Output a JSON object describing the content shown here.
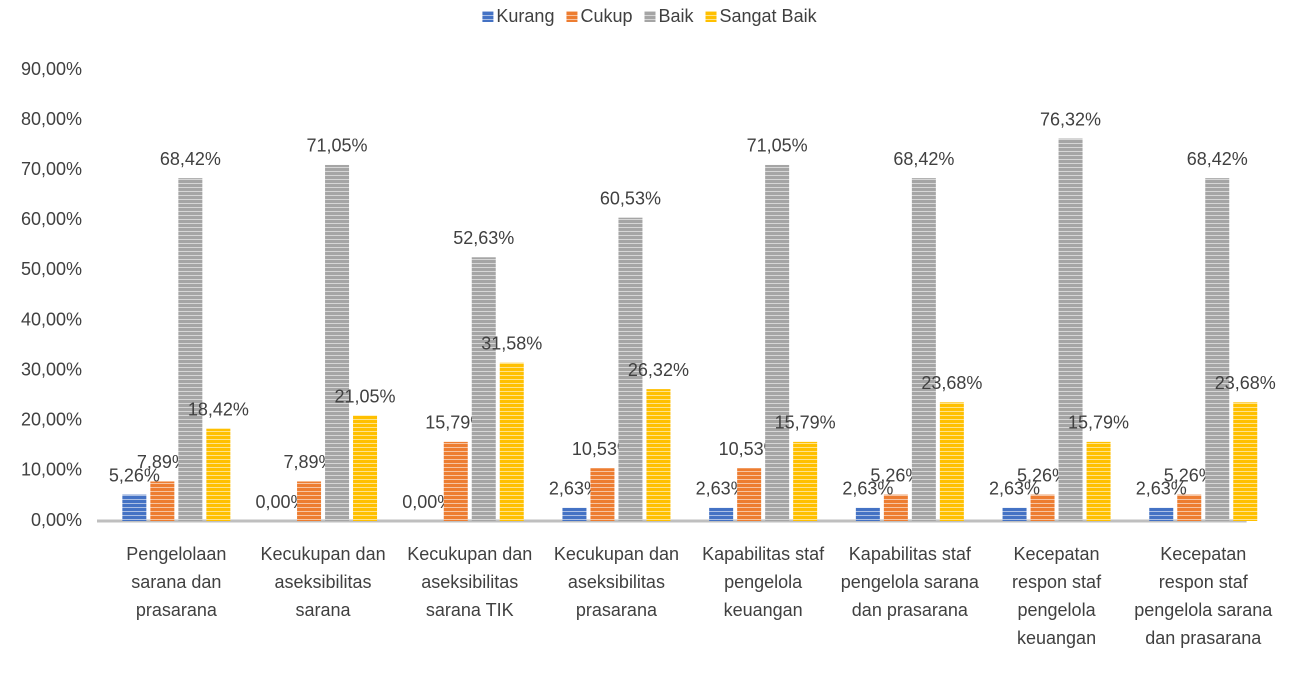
{
  "chart_data": {
    "type": "bar",
    "legend": "top",
    "categories": [
      "Pengelolaan sarana dan prasarana",
      "Kecukupan dan aseksibilitas sarana",
      "Kecukupan dan aseksibilitas sarana TIK",
      "Kecukupan dan aseksibilitas prasarana",
      "Kapabilitas staf pengelola keuangan",
      "Kapabilitas staf pengelola sarana dan prasarana",
      "Kecepatan respon staf pengelola keuangan",
      "Kecepatan respon staf pengelola sarana dan prasarana"
    ],
    "series": [
      {
        "name": "Kurang",
        "color": "#4472c4",
        "values": [
          5.26,
          0,
          0,
          2.63,
          2.63,
          2.63,
          2.63,
          2.63
        ],
        "value_labels": [
          "5,26%",
          "0,00%",
          "0,00%",
          "2,63%",
          "2,63%",
          "2,63%",
          "2,63%",
          "2,63%"
        ]
      },
      {
        "name": "Cukup",
        "color": "#ed7d31",
        "values": [
          7.89,
          7.89,
          15.79,
          10.53,
          10.53,
          5.26,
          5.26,
          5.26
        ],
        "value_labels": [
          "7,89%",
          "7,89%",
          "15,79%",
          "10,53%",
          "10,53%",
          "5,26%",
          "5,26%",
          "5,26%"
        ]
      },
      {
        "name": "Baik",
        "color": "#a5a5a5",
        "values": [
          68.42,
          71.05,
          52.63,
          60.53,
          71.05,
          68.42,
          76.32,
          68.42
        ],
        "value_labels": [
          "68,42%",
          "71,05%",
          "52,63%",
          "60,53%",
          "71,05%",
          "68,42%",
          "76,32%",
          "68,42%"
        ]
      },
      {
        "name": "Sangat Baik",
        "color": "#ffc000",
        "values": [
          18.42,
          21.05,
          31.58,
          26.32,
          15.79,
          23.68,
          15.79,
          23.68
        ],
        "value_labels": [
          "18,42%",
          "21,05%",
          "31,58%",
          "26,32%",
          "15,79%",
          "23,68%",
          "15,79%",
          "23,68%"
        ]
      }
    ],
    "ylim": [
      0,
      90
    ],
    "yticks": [
      {
        "value": 0,
        "label": "0,00%"
      },
      {
        "value": 10,
        "label": "10,00%"
      },
      {
        "value": 20,
        "label": "20,00%"
      },
      {
        "value": 30,
        "label": "30,00%"
      },
      {
        "value": 40,
        "label": "40,00%"
      },
      {
        "value": 50,
        "label": "50,00%"
      },
      {
        "value": 60,
        "label": "60,00%"
      },
      {
        "value": 70,
        "label": "70,00%"
      },
      {
        "value": 80,
        "label": "80,00%"
      },
      {
        "value": 90,
        "label": "90,00%"
      }
    ]
  }
}
